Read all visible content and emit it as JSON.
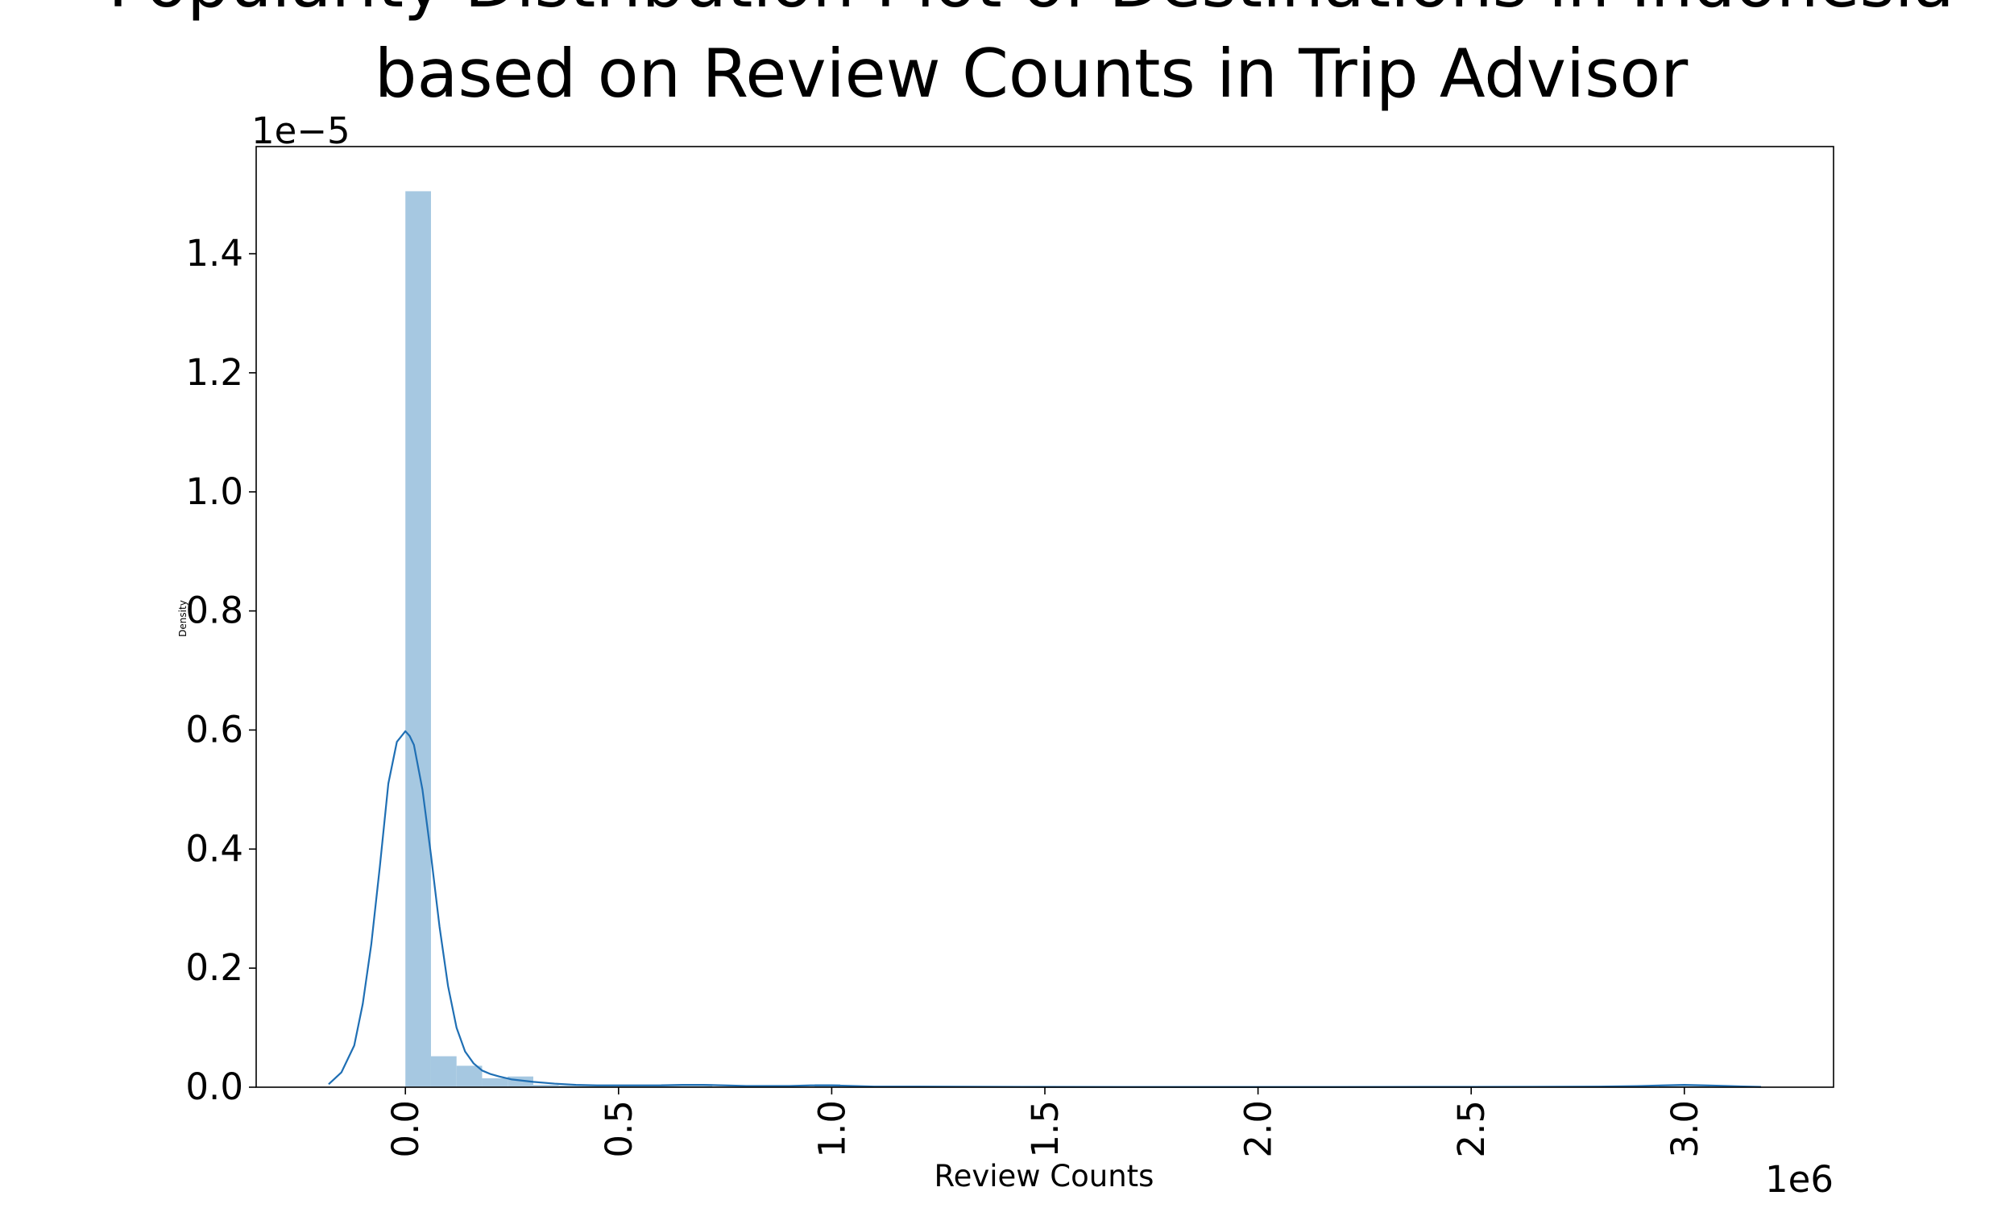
{
  "chart_data": {
    "type": "histogram",
    "title": "Popularity Distribution Plot of Destinations in Indonesia\nbased on Review Counts in Trip Advisor",
    "title_lines": [
      "Popularity Distribution Plot of Destinations in Indonesia",
      "based on Review Counts in Trip Advisor"
    ],
    "xlabel": "Review Counts",
    "ylabel": "Density",
    "x_offset_label": "1e6",
    "y_offset_label": "1e−5",
    "x_unit_scale": 1000000,
    "y_unit_scale": 1e-05,
    "xlim": [
      -0.35,
      3.35
    ],
    "ylim": [
      0,
      1.58
    ],
    "x_ticks": [
      0.0,
      0.5,
      1.0,
      1.5,
      2.0,
      2.5,
      3.0
    ],
    "x_tick_labels": [
      "0.0",
      "0.5",
      "1.0",
      "1.5",
      "2.0",
      "2.5",
      "3.0"
    ],
    "y_ticks": [
      0.0,
      0.2,
      0.4,
      0.6,
      0.8,
      1.0,
      1.2,
      1.4
    ],
    "y_tick_labels": [
      "0.0",
      "0.2",
      "0.4",
      "0.6",
      "0.8",
      "1.0",
      "1.2",
      "1.4"
    ],
    "grid": false,
    "bar_color": "#a6c8e1",
    "line_color": "#1f6fb4",
    "bins": [
      {
        "x0": 0.0,
        "x1": 0.06,
        "density": 1.505
      },
      {
        "x0": 0.06,
        "x1": 0.12,
        "density": 0.052
      },
      {
        "x0": 0.12,
        "x1": 0.18,
        "density": 0.036
      },
      {
        "x0": 0.18,
        "x1": 0.24,
        "density": 0.015
      },
      {
        "x0": 0.24,
        "x1": 0.3,
        "density": 0.018
      },
      {
        "x0": 0.3,
        "x1": 0.36,
        "density": 0.004
      },
      {
        "x0": 0.36,
        "x1": 0.42,
        "density": 0.003
      },
      {
        "x0": 0.42,
        "x1": 0.48,
        "density": 0.002
      },
      {
        "x0": 0.48,
        "x1": 0.54,
        "density": 0.002
      },
      {
        "x0": 0.54,
        "x1": 0.6,
        "density": 0.002
      },
      {
        "x0": 0.6,
        "x1": 0.66,
        "density": 0.005
      },
      {
        "x0": 0.66,
        "x1": 0.72,
        "density": 0.005
      },
      {
        "x0": 0.96,
        "x1": 1.02,
        "density": 0.005
      },
      {
        "x0": 2.94,
        "x1": 3.0,
        "density": 0.004
      },
      {
        "x0": 3.0,
        "x1": 3.06,
        "density": 0.003
      }
    ],
    "kde": {
      "x": [
        -0.18,
        -0.15,
        -0.12,
        -0.1,
        -0.08,
        -0.06,
        -0.04,
        -0.02,
        0.0,
        0.01,
        0.02,
        0.04,
        0.06,
        0.08,
        0.1,
        0.12,
        0.14,
        0.16,
        0.18,
        0.2,
        0.22,
        0.25,
        0.3,
        0.35,
        0.4,
        0.45,
        0.5,
        0.55,
        0.6,
        0.65,
        0.7,
        0.75,
        0.8,
        0.85,
        0.9,
        0.95,
        1.0,
        1.05,
        1.1,
        1.2,
        1.5,
        2.0,
        2.5,
        2.8,
        2.9,
        2.95,
        3.0,
        3.05,
        3.1,
        3.18
      ],
      "y": [
        0.005,
        0.025,
        0.07,
        0.14,
        0.24,
        0.37,
        0.51,
        0.58,
        0.598,
        0.59,
        0.575,
        0.5,
        0.39,
        0.27,
        0.17,
        0.1,
        0.06,
        0.04,
        0.028,
        0.022,
        0.018,
        0.013,
        0.009,
        0.006,
        0.004,
        0.003,
        0.003,
        0.003,
        0.003,
        0.004,
        0.004,
        0.003,
        0.002,
        0.002,
        0.002,
        0.003,
        0.003,
        0.002,
        0.001,
        0.001,
        0.0005,
        0.0003,
        0.0005,
        0.001,
        0.002,
        0.003,
        0.004,
        0.003,
        0.002,
        0.0005
      ]
    }
  }
}
